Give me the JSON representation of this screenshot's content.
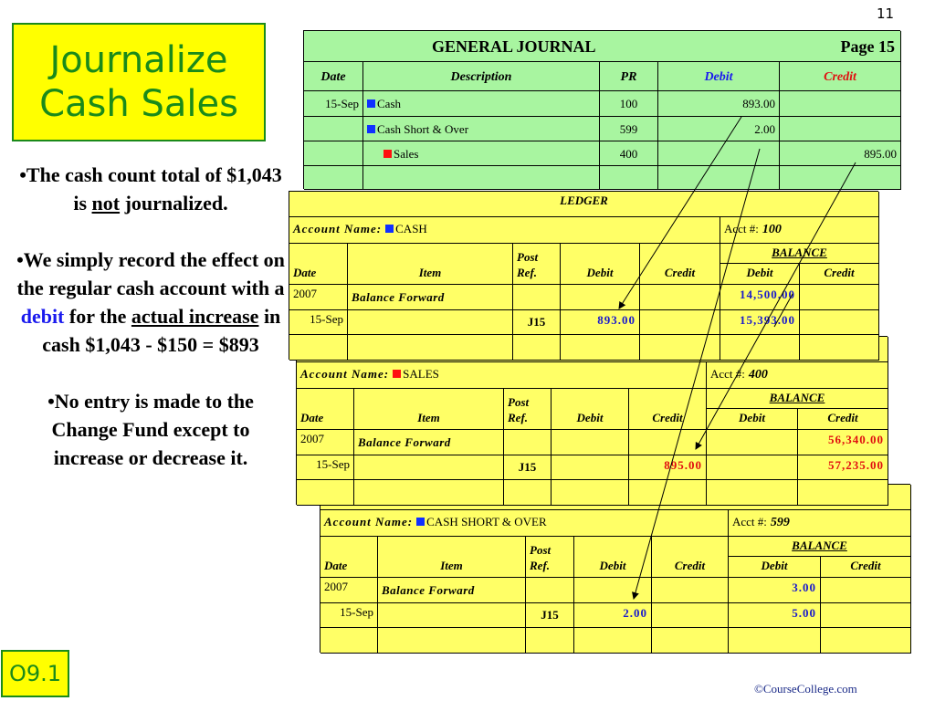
{
  "slide_number": "11",
  "title": "Journalize Cash Sales",
  "bullets": [
    [
      "•The cash count total of $1,043 is ",
      "not",
      " journalized."
    ],
    [
      "•We simply record the effect on the regular cash account with a ",
      "debit",
      " for the ",
      "actual increase",
      " in cash $1,043 - $150 = $893"
    ],
    [
      "•No entry is made to the Change Fund except to increase or decrease it."
    ]
  ],
  "journal": {
    "title": "GENERAL JOURNAL",
    "page": "Page 15",
    "headers": [
      "Date",
      "Description",
      "PR",
      "Debit",
      "Credit"
    ],
    "rows": [
      {
        "date": "15-Sep",
        "description": "Cash",
        "marker": "#1030ff",
        "pr": "100",
        "debit": "893.00",
        "credit": null
      },
      {
        "date": null,
        "description": "Cash Short & Over",
        "marker": "#1030ff",
        "pr": "599",
        "debit": "2.00",
        "credit": null
      },
      {
        "date": null,
        "description": "Sales",
        "marker": "#ff1010",
        "pr": "400",
        "debit": null,
        "credit": "895.00"
      }
    ]
  },
  "ledger_title": "LEDGER",
  "ledger_labels": {
    "account_name": "Account Name:",
    "acct_no": "Acct #:",
    "balance": "BALANCE",
    "headers": [
      "Date",
      "Item",
      "Post Ref.",
      "Debit",
      "Credit"
    ],
    "balance_headers": [
      "Debit",
      "Credit"
    ]
  },
  "ledgers": [
    {
      "account": "CASH",
      "marker": "#1030ff",
      "acct_no": "100",
      "value_color": "#1a1acc",
      "rows": [
        [
          "2007",
          "Balance Forward",
          null,
          null,
          null,
          "14,500.00",
          null
        ],
        [
          "15-Sep",
          null,
          "J15",
          "893.00",
          null,
          "15,393.00",
          null
        ]
      ]
    },
    {
      "account": "SALES",
      "marker": "#ff1010",
      "acct_no": "400",
      "value_color": "#e01010",
      "rows": [
        [
          "2007",
          "Balance Forward",
          null,
          null,
          null,
          null,
          "56,340.00"
        ],
        [
          "15-Sep",
          null,
          "J15",
          null,
          "895.00",
          null,
          "57,235.00"
        ]
      ]
    },
    {
      "account": "CASH SHORT & OVER",
      "marker": "#1030ff",
      "acct_no": "599",
      "value_color": "#1a1acc",
      "rows": [
        [
          "2007",
          "Balance Forward",
          null,
          null,
          null,
          "3.00",
          null
        ],
        [
          "15-Sep",
          null,
          "J15",
          "2.00",
          null,
          "5.00",
          null
        ]
      ]
    }
  ],
  "footer": {
    "code": "O9.1",
    "copyright": "©CourseCollege.com"
  }
}
